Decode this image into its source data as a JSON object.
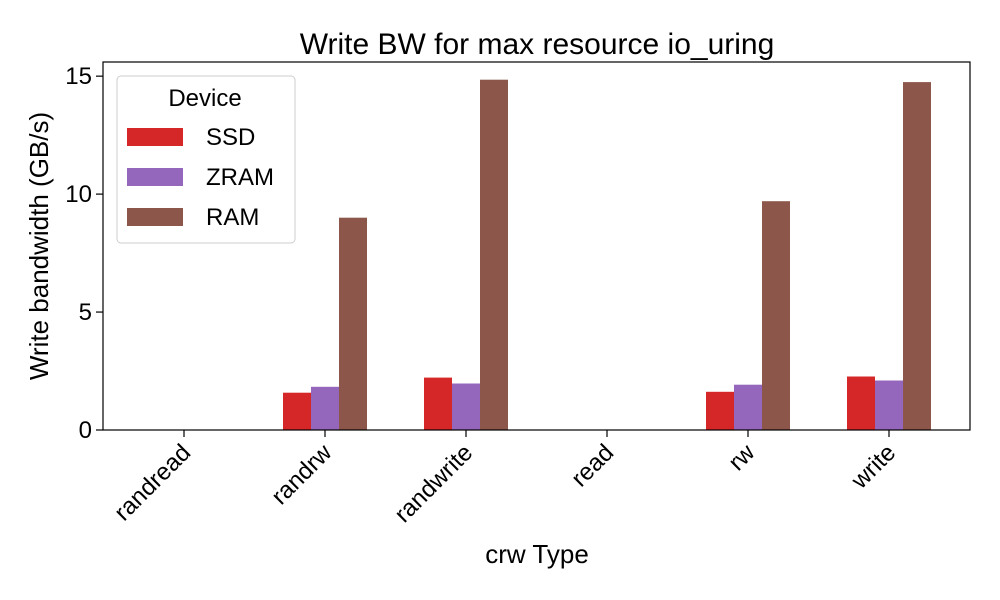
{
  "chart_data": {
    "type": "bar",
    "title": "Write BW for max resource io_uring",
    "xlabel": "crw Type",
    "ylabel": "Write bandwidth (GB/s)",
    "categories": [
      "randread",
      "randrw",
      "randwrite",
      "read",
      "rw",
      "write"
    ],
    "series": [
      {
        "name": "SSD",
        "color": "#d62728",
        "values": [
          0,
          1.58,
          2.22,
          0,
          1.62,
          2.27
        ]
      },
      {
        "name": "ZRAM",
        "color": "#9467bd",
        "values": [
          0,
          1.83,
          1.97,
          0,
          1.92,
          2.1
        ]
      },
      {
        "name": "RAM",
        "color": "#8c564b",
        "values": [
          0,
          9.0,
          14.85,
          0,
          9.7,
          14.75
        ]
      }
    ],
    "ylim": [
      0,
      15.6
    ],
    "yticks": [
      "0",
      "5",
      "10",
      "15"
    ],
    "ytick_values": [
      0,
      5,
      10,
      15
    ],
    "legend": {
      "title": "Device",
      "placement": "upper left"
    },
    "grid": false
  }
}
